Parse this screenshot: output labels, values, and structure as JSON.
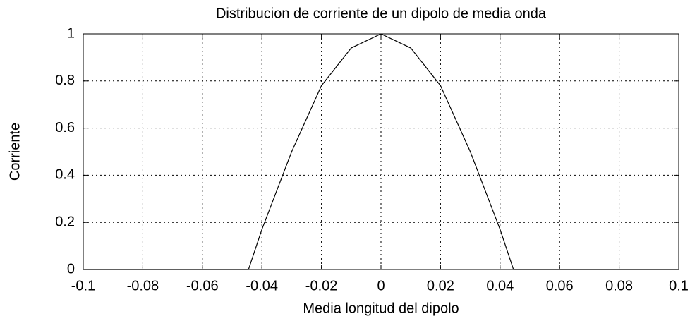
{
  "chart_data": {
    "type": "line",
    "title": "Distribucion de corriente de un dipolo de media onda",
    "xlabel": "Media longitud del dipolo",
    "ylabel": "Corriente",
    "x": [
      -0.1,
      -0.0445,
      -0.04,
      -0.03,
      -0.02,
      -0.01,
      0,
      0.01,
      0.02,
      0.03,
      0.04,
      0.0445,
      0.1
    ],
    "values": [
      0,
      0,
      0.17,
      0.5,
      0.78,
      0.94,
      1,
      0.94,
      0.78,
      0.5,
      0.17,
      0,
      0
    ],
    "color": "#000000",
    "xlim": [
      -0.1,
      0.1
    ],
    "xticks": [
      -0.1,
      -0.08,
      -0.06,
      -0.04,
      -0.02,
      0,
      0.02,
      0.04,
      0.06,
      0.08,
      0.1
    ],
    "ylim": [
      0,
      1
    ],
    "yticks": [
      0,
      0.2,
      0.4,
      0.6,
      0.8,
      1
    ],
    "grid": true
  }
}
